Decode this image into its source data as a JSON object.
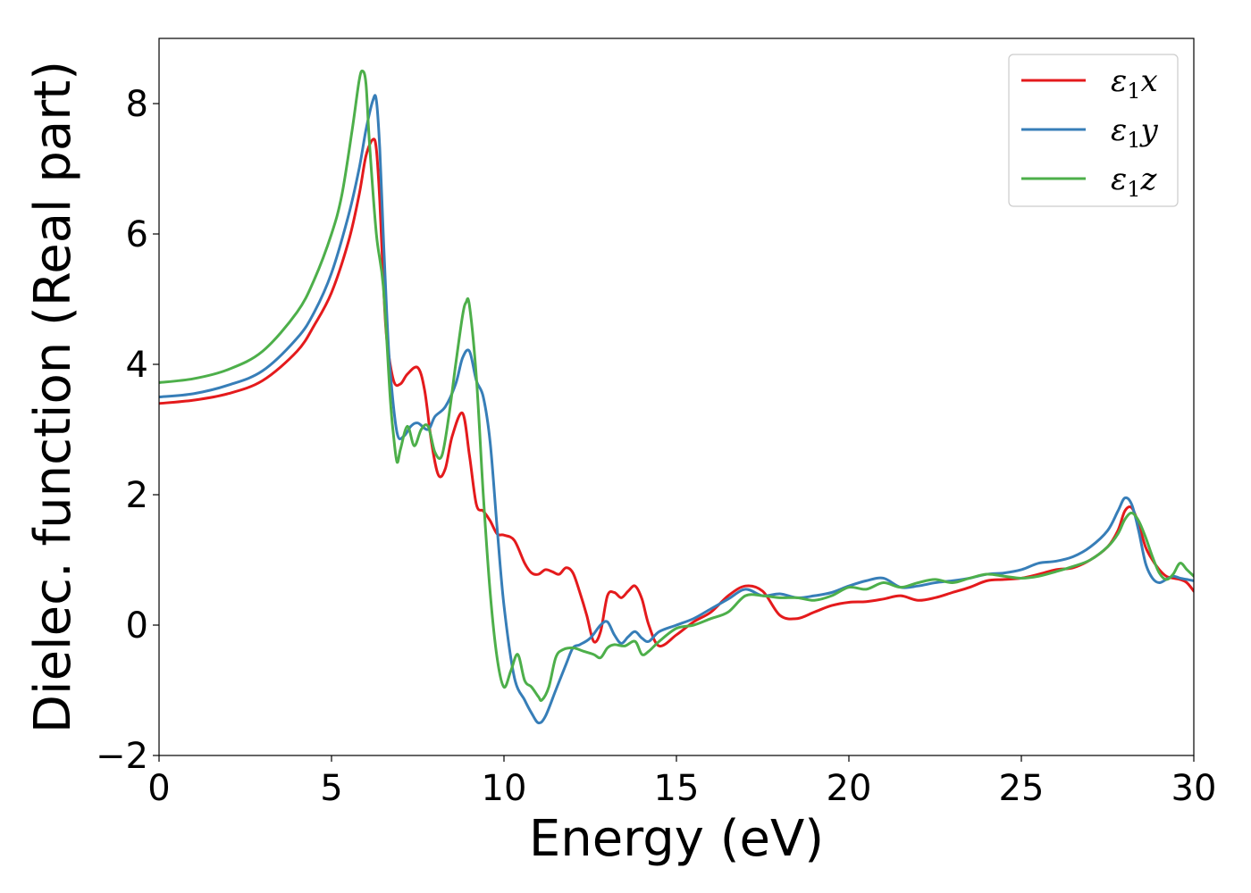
{
  "chart_data": {
    "type": "line",
    "xlabel": "Energy (eV)",
    "ylabel": "Dielec. function (Real part)",
    "xlim": [
      0,
      30
    ],
    "ylim": [
      -2,
      9
    ],
    "xticks": [
      0,
      5,
      10,
      15,
      20,
      25,
      30
    ],
    "yticks": [
      -2,
      0,
      2,
      4,
      6,
      8
    ],
    "xtick_labels": [
      "0",
      "5",
      "10",
      "15",
      "20",
      "25",
      "30"
    ],
    "ytick_labels": [
      "−2",
      "0",
      "2",
      "4",
      "6",
      "8"
    ],
    "grid": false,
    "legend_position": "top-right",
    "series": [
      {
        "name": "ε₁x",
        "name_base": "ε",
        "name_sub": "1",
        "name_suffix": "x",
        "color": "#e41a1c",
        "x": [
          0,
          1,
          2,
          3,
          4,
          4.5,
          5,
          5.5,
          5.8,
          6.0,
          6.2,
          6.3,
          6.4,
          6.5,
          6.6,
          6.8,
          7.0,
          7.2,
          7.5,
          7.7,
          7.9,
          8.1,
          8.3,
          8.5,
          8.8,
          9.0,
          9.2,
          9.4,
          9.6,
          9.8,
          10.0,
          10.3,
          10.6,
          10.8,
          11.0,
          11.2,
          11.4,
          11.6,
          11.8,
          12.0,
          12.2,
          12.4,
          12.6,
          12.8,
          13.0,
          13.2,
          13.4,
          13.6,
          13.8,
          14.0,
          14.2,
          14.5,
          15.0,
          15.5,
          16.0,
          16.5,
          17.0,
          17.5,
          18.0,
          18.5,
          19.0,
          19.5,
          20.0,
          20.5,
          21.0,
          21.5,
          22.0,
          22.5,
          23.0,
          23.5,
          24.0,
          24.5,
          25.0,
          25.5,
          26.0,
          26.5,
          27.0,
          27.5,
          27.8,
          28.0,
          28.2,
          28.4,
          28.6,
          28.8,
          29.0,
          29.2,
          29.4,
          29.6,
          29.8,
          30.0
        ],
        "y": [
          3.4,
          3.45,
          3.55,
          3.75,
          4.2,
          4.6,
          5.1,
          5.9,
          6.6,
          7.2,
          7.45,
          7.3,
          6.5,
          5.3,
          4.4,
          3.75,
          3.7,
          3.85,
          3.95,
          3.6,
          2.8,
          2.3,
          2.4,
          2.9,
          3.25,
          2.6,
          1.85,
          1.75,
          1.6,
          1.4,
          1.38,
          1.3,
          0.95,
          0.8,
          0.78,
          0.85,
          0.82,
          0.78,
          0.88,
          0.8,
          0.5,
          0.15,
          -0.25,
          -0.1,
          0.45,
          0.5,
          0.42,
          0.52,
          0.6,
          0.4,
          0.0,
          -0.32,
          -0.15,
          0.05,
          0.2,
          0.45,
          0.6,
          0.52,
          0.15,
          0.1,
          0.2,
          0.3,
          0.35,
          0.36,
          0.4,
          0.45,
          0.38,
          0.42,
          0.5,
          0.58,
          0.68,
          0.7,
          0.72,
          0.78,
          0.85,
          0.88,
          1.0,
          1.2,
          1.45,
          1.75,
          1.8,
          1.55,
          1.2,
          1.0,
          0.85,
          0.75,
          0.72,
          0.7,
          0.65,
          0.52
        ]
      },
      {
        "name": "ε₁y",
        "name_base": "ε",
        "name_sub": "1",
        "name_suffix": "y",
        "color": "#377eb8",
        "x": [
          0,
          1,
          2,
          3,
          4,
          4.5,
          5,
          5.5,
          5.8,
          6.0,
          6.2,
          6.3,
          6.4,
          6.5,
          6.6,
          6.7,
          6.9,
          7.1,
          7.3,
          7.5,
          7.8,
          8.0,
          8.3,
          8.6,
          8.8,
          9.0,
          9.2,
          9.4,
          9.6,
          9.8,
          10.0,
          10.3,
          10.6,
          10.8,
          11.0,
          11.2,
          11.5,
          11.8,
          12.0,
          12.2,
          12.5,
          12.8,
          13.0,
          13.2,
          13.4,
          13.6,
          13.8,
          14.0,
          14.2,
          14.5,
          15.0,
          15.5,
          16.0,
          16.5,
          17.0,
          17.5,
          18.0,
          18.5,
          19.0,
          19.5,
          20.0,
          20.5,
          21.0,
          21.5,
          22.0,
          22.5,
          23.0,
          23.5,
          24.0,
          24.5,
          25.0,
          25.5,
          26.0,
          26.5,
          27.0,
          27.5,
          27.8,
          28.0,
          28.2,
          28.4,
          28.6,
          28.8,
          29.0,
          29.2,
          29.4,
          29.6,
          29.8,
          30.0
        ],
        "y": [
          3.5,
          3.55,
          3.68,
          3.9,
          4.4,
          4.8,
          5.4,
          6.3,
          7.0,
          7.6,
          8.05,
          8.05,
          7.3,
          6.0,
          4.8,
          3.9,
          2.95,
          2.9,
          3.05,
          3.1,
          3.0,
          3.2,
          3.35,
          3.7,
          4.1,
          4.2,
          3.75,
          3.5,
          2.8,
          1.5,
          0.3,
          -0.8,
          -1.15,
          -1.35,
          -1.5,
          -1.4,
          -1.0,
          -0.6,
          -0.35,
          -0.3,
          -0.2,
          0.0,
          0.05,
          -0.15,
          -0.28,
          -0.18,
          -0.1,
          -0.2,
          -0.25,
          -0.1,
          0.0,
          0.1,
          0.25,
          0.4,
          0.55,
          0.45,
          0.48,
          0.42,
          0.45,
          0.5,
          0.6,
          0.68,
          0.72,
          0.58,
          0.6,
          0.65,
          0.68,
          0.72,
          0.78,
          0.8,
          0.85,
          0.95,
          0.98,
          1.05,
          1.2,
          1.45,
          1.75,
          1.95,
          1.85,
          1.45,
          0.95,
          0.72,
          0.65,
          0.7,
          0.75,
          0.72,
          0.7,
          0.68
        ]
      },
      {
        "name": "ε₁z",
        "name_base": "ε",
        "name_sub": "1",
        "name_suffix": "z",
        "color": "#4daf4a",
        "x": [
          0,
          1,
          2,
          3,
          4,
          4.5,
          5,
          5.3,
          5.6,
          5.8,
          5.9,
          6.0,
          6.1,
          6.3,
          6.5,
          6.7,
          6.8,
          6.9,
          7.0,
          7.2,
          7.4,
          7.6,
          7.8,
          8.0,
          8.2,
          8.4,
          8.6,
          8.8,
          8.9,
          9.0,
          9.2,
          9.4,
          9.6,
          9.8,
          10.0,
          10.2,
          10.4,
          10.6,
          10.8,
          11.0,
          11.1,
          11.3,
          11.5,
          11.7,
          12.0,
          12.3,
          12.6,
          12.8,
          13.0,
          13.2,
          13.5,
          13.8,
          14.0,
          14.2,
          14.5,
          15.0,
          15.5,
          16.0,
          16.5,
          17.0,
          17.5,
          18.0,
          18.5,
          19.0,
          19.5,
          20.0,
          20.5,
          21.0,
          21.5,
          22.0,
          22.5,
          23.0,
          23.5,
          24.0,
          24.5,
          25.0,
          25.5,
          26.0,
          26.5,
          27.0,
          27.5,
          27.8,
          28.0,
          28.2,
          28.4,
          28.6,
          28.8,
          29.0,
          29.2,
          29.4,
          29.6,
          29.8,
          30.0
        ],
        "y": [
          3.72,
          3.78,
          3.92,
          4.2,
          4.8,
          5.3,
          6.0,
          6.6,
          7.6,
          8.35,
          8.5,
          8.3,
          7.4,
          6.0,
          5.2,
          3.5,
          2.9,
          2.5,
          2.7,
          3.05,
          2.75,
          3.0,
          3.05,
          2.65,
          2.6,
          3.2,
          4.0,
          4.75,
          4.95,
          4.9,
          3.8,
          2.0,
          0.5,
          -0.5,
          -0.95,
          -0.7,
          -0.45,
          -0.85,
          -0.95,
          -1.1,
          -1.15,
          -0.95,
          -0.5,
          -0.38,
          -0.35,
          -0.4,
          -0.45,
          -0.5,
          -0.35,
          -0.3,
          -0.32,
          -0.25,
          -0.45,
          -0.4,
          -0.25,
          -0.05,
          0.0,
          0.1,
          0.2,
          0.45,
          0.45,
          0.42,
          0.42,
          0.38,
          0.45,
          0.58,
          0.55,
          0.65,
          0.58,
          0.65,
          0.7,
          0.65,
          0.72,
          0.78,
          0.75,
          0.72,
          0.75,
          0.82,
          0.9,
          1.0,
          1.2,
          1.4,
          1.62,
          1.72,
          1.6,
          1.35,
          1.05,
          0.8,
          0.7,
          0.78,
          0.95,
          0.85,
          0.75
        ]
      }
    ]
  }
}
